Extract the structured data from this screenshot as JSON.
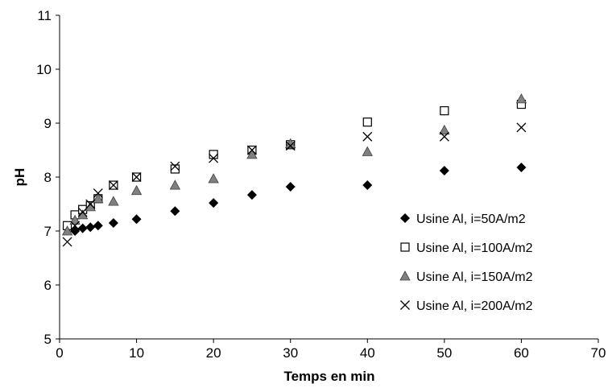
{
  "chart_data": {
    "type": "scatter",
    "title": "",
    "xlabel": "Temps en min",
    "ylabel": "pH",
    "xlim": [
      0,
      70
    ],
    "ylim": [
      5,
      11
    ],
    "xticks": [
      "0",
      "10",
      "20",
      "30",
      "40",
      "50",
      "60",
      "70"
    ],
    "yticks": [
      "5",
      "6",
      "7",
      "8",
      "9",
      "10",
      "11"
    ],
    "grid": false,
    "legend_position": "right",
    "series": [
      {
        "name": "Usine Al, i=50A/m2",
        "marker": "diamond",
        "color": "#000000",
        "points": [
          [
            1,
            7.05
          ],
          [
            2,
            7.0
          ],
          [
            3,
            7.05
          ],
          [
            4,
            7.07
          ],
          [
            5,
            7.1
          ],
          [
            7,
            7.15
          ],
          [
            10,
            7.22
          ],
          [
            15,
            7.37
          ],
          [
            20,
            7.52
          ],
          [
            25,
            7.67
          ],
          [
            30,
            7.82
          ],
          [
            40,
            7.85
          ],
          [
            50,
            8.12
          ],
          [
            60,
            8.18
          ]
        ]
      },
      {
        "name": "Usine Al, i=100A/m2",
        "marker": "square",
        "color": "#000000",
        "points": [
          [
            1,
            7.1
          ],
          [
            2,
            7.3
          ],
          [
            3,
            7.4
          ],
          [
            4,
            7.47
          ],
          [
            5,
            7.6
          ],
          [
            7,
            7.85
          ],
          [
            10,
            8.0
          ],
          [
            15,
            8.15
          ],
          [
            20,
            8.42
          ],
          [
            25,
            8.5
          ],
          [
            30,
            8.6
          ],
          [
            40,
            9.02
          ],
          [
            50,
            9.23
          ],
          [
            60,
            9.35
          ]
        ]
      },
      {
        "name": "Usine Al, i=150A/m2",
        "marker": "triangle",
        "color": "#808080",
        "points": [
          [
            1,
            7.0
          ],
          [
            2,
            7.2
          ],
          [
            3,
            7.3
          ],
          [
            4,
            7.45
          ],
          [
            5,
            7.6
          ],
          [
            7,
            7.55
          ],
          [
            10,
            7.75
          ],
          [
            15,
            7.85
          ],
          [
            20,
            7.97
          ],
          [
            25,
            8.42
          ],
          [
            30,
            8.62
          ],
          [
            40,
            8.47
          ],
          [
            50,
            8.87
          ],
          [
            60,
            9.45
          ]
        ]
      },
      {
        "name": "Usine Al, i=200A/m2",
        "marker": "x",
        "color": "#000000",
        "points": [
          [
            1,
            6.8
          ],
          [
            2,
            7.1
          ],
          [
            3,
            7.35
          ],
          [
            4,
            7.5
          ],
          [
            5,
            7.7
          ],
          [
            7,
            7.85
          ],
          [
            10,
            8.0
          ],
          [
            15,
            8.2
          ],
          [
            20,
            8.35
          ],
          [
            25,
            8.5
          ],
          [
            30,
            8.58
          ],
          [
            40,
            8.75
          ],
          [
            50,
            8.75
          ],
          [
            60,
            8.92
          ]
        ]
      }
    ]
  }
}
